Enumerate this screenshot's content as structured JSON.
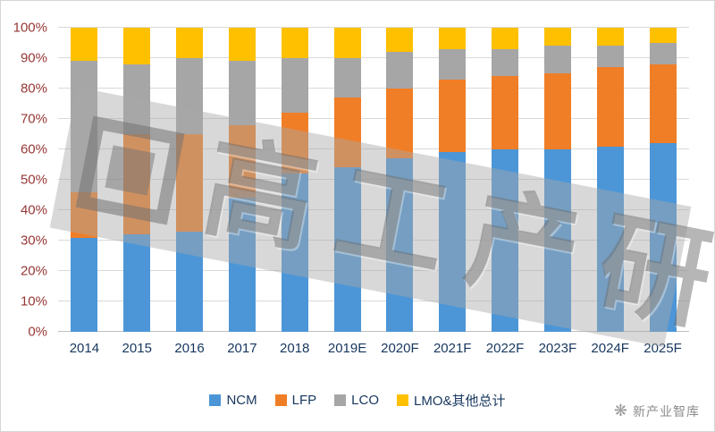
{
  "chart_data": {
    "type": "bar",
    "stacked": true,
    "percent": true,
    "title": "",
    "xlabel": "",
    "ylabel": "",
    "ylim": [
      0,
      100
    ],
    "grid": true,
    "legend_position": "bottom",
    "y_ticks": [
      "0%",
      "10%",
      "20%",
      "30%",
      "40%",
      "50%",
      "60%",
      "70%",
      "80%",
      "90%",
      "100%"
    ],
    "categories": [
      "2014",
      "2015",
      "2016",
      "2017",
      "2018",
      "2019E",
      "2020F",
      "2021F",
      "2022F",
      "2023F",
      "2024F",
      "2025F"
    ],
    "series": [
      {
        "name": "NCM",
        "color": "#4C96D7",
        "values": [
          31,
          32,
          33,
          44,
          52,
          54,
          57,
          59,
          60,
          60,
          61,
          62
        ]
      },
      {
        "name": "LFP",
        "color": "#F07E26",
        "values": [
          15,
          33,
          32,
          24,
          20,
          23,
          23,
          24,
          24,
          25,
          26,
          26
        ]
      },
      {
        "name": "LCO",
        "color": "#A6A6A6",
        "values": [
          43,
          23,
          25,
          21,
          18,
          13,
          12,
          10,
          9,
          9,
          7,
          7
        ]
      },
      {
        "name": "LMO&其他总计",
        "color": "#FFC000",
        "values": [
          11,
          12,
          10,
          11,
          10,
          10,
          8,
          7,
          7,
          6,
          6,
          5
        ]
      }
    ]
  },
  "axis": {
    "y_label_color": "#953735",
    "x_label_color": "#17375E"
  },
  "watermark": {
    "text": "高工产研"
  },
  "footer": {
    "brand": "新产业智库",
    "icon": "dandelion-icon"
  }
}
